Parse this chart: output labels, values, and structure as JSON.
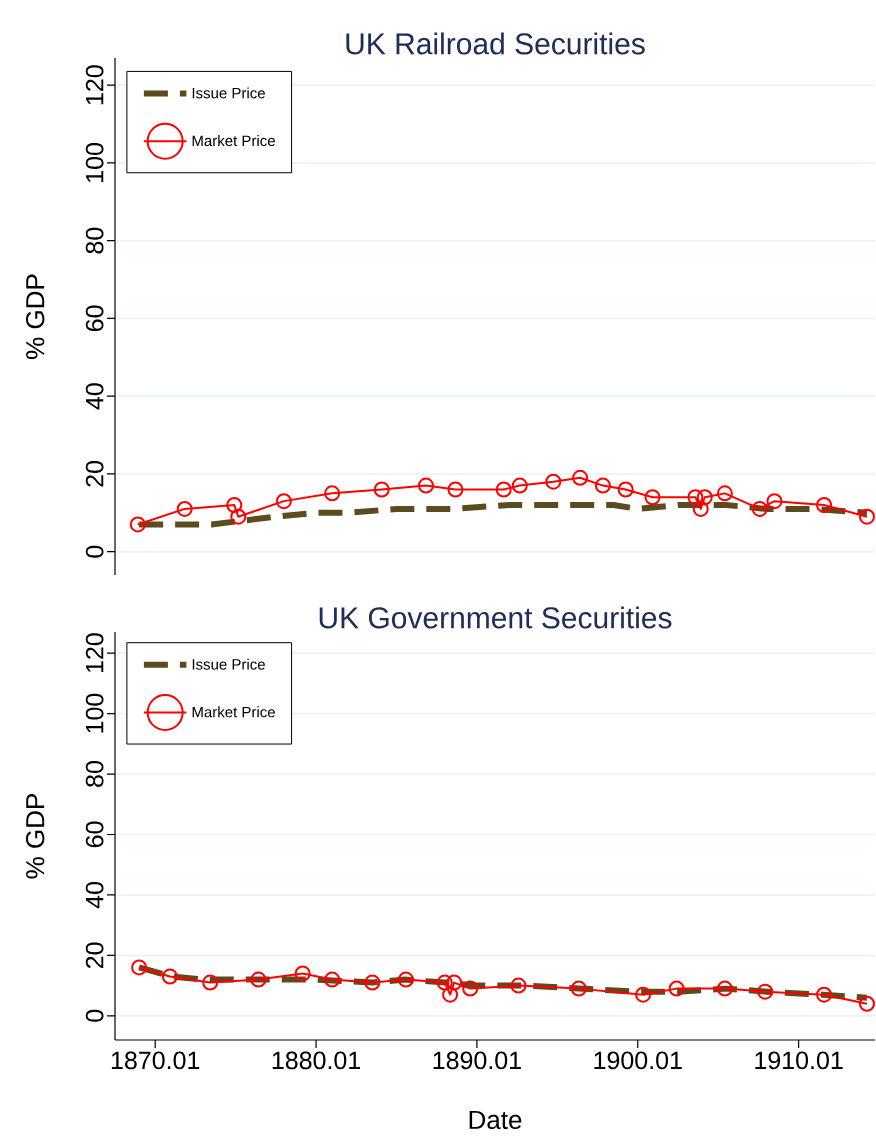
{
  "chart_data": [
    {
      "type": "line",
      "title": "UK Railroad Securities",
      "ylabel": "% GDP",
      "xlim": [
        "1867-07",
        "1914-10"
      ],
      "ylim": [
        -6,
        127
      ],
      "yticks": [
        0,
        20,
        40,
        60,
        80,
        100,
        120
      ],
      "grid": "y",
      "legend": "top left",
      "tick_labels": "y",
      "series": [
        {
          "name": "Issue Price",
          "color": "#5c4b1f",
          "line_style": "dashed",
          "marker": "none",
          "x": [
            "1869-01",
            "1871-01",
            "1873-07",
            "1877-07",
            "1880-01",
            "1882-01",
            "1885-01",
            "1888-07",
            "1892-01",
            "1895-07",
            "1898-07",
            "1900-01",
            "1902-07",
            "1905-07",
            "1908-01",
            "1911-01",
            "1914-04"
          ],
          "values": [
            7,
            7,
            7,
            9,
            10,
            10,
            11,
            11,
            12,
            12,
            12,
            11,
            12,
            12,
            11,
            11,
            10
          ]
        },
        {
          "name": "Market Price",
          "color": "#ff0000",
          "line_style": "solid",
          "marker": "circle",
          "x": [
            "1868-12",
            "1871-11",
            "1874-12",
            "1875-03",
            "1878-01",
            "1881-01",
            "1884-02",
            "1886-11",
            "1888-09",
            "1891-09",
            "1892-09",
            "1894-10",
            "1896-06",
            "1897-11",
            "1899-04",
            "1900-12",
            "1903-08",
            "1903-12",
            "1904-03",
            "1905-06",
            "1907-08",
            "1908-07",
            "1911-08",
            "1914-04"
          ],
          "values": [
            7,
            11,
            12,
            9,
            13,
            15,
            16,
            17,
            16,
            16,
            17,
            18,
            19,
            17,
            16,
            14,
            14,
            11,
            14,
            15,
            11,
            13,
            12,
            9
          ]
        }
      ]
    },
    {
      "type": "line",
      "title": "UK Government Securities",
      "xlabel": "Date",
      "ylabel": "% GDP",
      "xlim": [
        "1867-07",
        "1914-10"
      ],
      "ylim": [
        -8,
        127
      ],
      "xticks": [
        {
          "value": "1870-01",
          "label": "1870.01"
        },
        {
          "value": "1880-01",
          "label": "1880.01"
        },
        {
          "value": "1890-01",
          "label": "1890.01"
        },
        {
          "value": "1900-01",
          "label": "1900.01"
        },
        {
          "value": "1910-01",
          "label": "1910.01"
        }
      ],
      "yticks": [
        0,
        20,
        40,
        60,
        80,
        100,
        120
      ],
      "grid": "y",
      "legend": "top left",
      "series": [
        {
          "name": "Issue Price",
          "color": "#5c4b1f",
          "line_style": "dashed",
          "marker": "none",
          "x": [
            "1869-01",
            "1871-01",
            "1873-01",
            "1876-07",
            "1880-01",
            "1883-07",
            "1885-07",
            "1888-01",
            "1890-01",
            "1893-01",
            "1896-07",
            "1900-01",
            "1902-07",
            "1905-07",
            "1908-01",
            "1911-07",
            "1914-04"
          ],
          "values": [
            16,
            13,
            12,
            12,
            12,
            11,
            12,
            11,
            10,
            10,
            9,
            8,
            8,
            9,
            8,
            7,
            6
          ]
        },
        {
          "name": "Market Price",
          "color": "#ff0000",
          "line_style": "solid",
          "marker": "circle",
          "x": [
            "1869-01",
            "1870-12",
            "1873-06",
            "1876-06",
            "1879-03",
            "1881-01",
            "1883-07",
            "1885-08",
            "1888-01",
            "1888-05",
            "1888-08",
            "1889-08",
            "1892-08",
            "1896-05",
            "1900-05",
            "1902-06",
            "1905-06",
            "1907-12",
            "1911-08",
            "1914-04"
          ],
          "values": [
            16,
            13,
            11,
            12,
            14,
            12,
            11,
            12,
            11,
            7,
            11,
            9,
            10,
            9,
            7,
            9,
            9,
            8,
            7,
            4
          ]
        }
      ]
    }
  ]
}
